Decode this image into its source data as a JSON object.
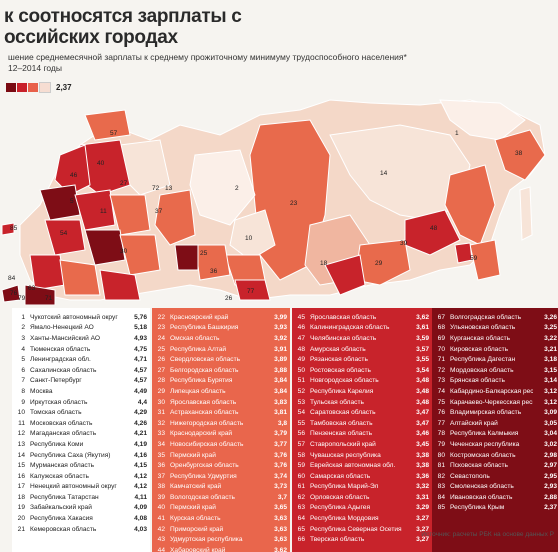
{
  "title_line1": "к соотносятся зарплаты с",
  "title_line2": "оссийских городах",
  "subtitle": "шение среднемесячной зарплаты к среднему прожиточному минимуму трудоспособного населения*\n12–2014 годы",
  "legend_colors": [
    "#7a0a12",
    "#c8202a",
    "#e8604a",
    "#f6ddd2"
  ],
  "legend_value": "2,37",
  "map_labels": [
    {
      "t": "1"
    },
    {
      "t": "38"
    },
    {
      "t": "14"
    },
    {
      "t": "23"
    },
    {
      "t": "2"
    },
    {
      "t": "10"
    },
    {
      "t": "13"
    },
    {
      "t": "57"
    },
    {
      "t": "72"
    },
    {
      "t": "40"
    },
    {
      "t": "46"
    },
    {
      "t": "11"
    },
    {
      "t": "27"
    },
    {
      "t": "37"
    },
    {
      "t": "54"
    },
    {
      "t": "48"
    },
    {
      "t": "39"
    },
    {
      "t": "29"
    },
    {
      "t": "18"
    },
    {
      "t": "59"
    },
    {
      "t": "77"
    },
    {
      "t": "26"
    },
    {
      "t": "36"
    },
    {
      "t": "25"
    },
    {
      "t": "85"
    },
    {
      "t": "63"
    },
    {
      "t": "76"
    },
    {
      "t": "79"
    },
    {
      "t": "84"
    },
    {
      "t": "71"
    },
    {
      "t": "30"
    },
    {
      "t": "5"
    }
  ],
  "columns": [
    {
      "color": "#ffffff",
      "rows": [
        {
          "n": "1",
          "name": "Чукотский автономный округ",
          "v": "5,76"
        },
        {
          "n": "2",
          "name": "Ямало-Ненецкий АО",
          "v": "5,18"
        },
        {
          "n": "3",
          "name": "Ханты-Мансийский АО",
          "v": "4,93"
        },
        {
          "n": "4",
          "name": "Тюменская область",
          "v": "4,75"
        },
        {
          "n": "5",
          "name": "Ленинградская обл.",
          "v": "4,71"
        },
        {
          "n": "6",
          "name": "Сахалинская область",
          "v": "4,57"
        },
        {
          "n": "7",
          "name": "Санкт-Петербург",
          "v": "4,57"
        },
        {
          "n": "8",
          "name": "Москва",
          "v": "4,49"
        },
        {
          "n": "9",
          "name": "Иркутская область",
          "v": "4,4"
        },
        {
          "n": "10",
          "name": "Томская область",
          "v": "4,29"
        },
        {
          "n": "11",
          "name": "Московская область",
          "v": "4,26"
        },
        {
          "n": "12",
          "name": "Магаданская область",
          "v": "4,21"
        },
        {
          "n": "13",
          "name": "Республика Коми",
          "v": "4,19"
        },
        {
          "n": "14",
          "name": "Республика Саха (Якутия)",
          "v": "4,16"
        },
        {
          "n": "15",
          "name": "Мурманская область",
          "v": "4,15"
        },
        {
          "n": "16",
          "name": "Калужская область",
          "v": "4,12"
        },
        {
          "n": "17",
          "name": "Ненецкий автономный округ",
          "v": "4,12"
        },
        {
          "n": "18",
          "name": "Республика Татарстан",
          "v": "4,11"
        },
        {
          "n": "19",
          "name": "Забайкальский край",
          "v": "4,09"
        },
        {
          "n": "20",
          "name": "Республика Хакасия",
          "v": "4,08"
        },
        {
          "n": "21",
          "name": "Кемеровская область",
          "v": "4,03"
        }
      ]
    },
    {
      "color": "#e9664c",
      "rows": [
        {
          "n": "22",
          "name": "Красноярский край",
          "v": "3,99"
        },
        {
          "n": "23",
          "name": "Республика Башкирия",
          "v": "3,93"
        },
        {
          "n": "24",
          "name": "Омская область",
          "v": "3,92"
        },
        {
          "n": "25",
          "name": "Республика Алтай",
          "v": "3,91"
        },
        {
          "n": "26",
          "name": "Свердловская область",
          "v": "3,89"
        },
        {
          "n": "27",
          "name": "Белгородская область",
          "v": "3,88"
        },
        {
          "n": "28",
          "name": "Республика Бурятия",
          "v": "3,84"
        },
        {
          "n": "29",
          "name": "Липецкая область",
          "v": "3,84"
        },
        {
          "n": "30",
          "name": "Ярославская область",
          "v": "3,83"
        },
        {
          "n": "31",
          "name": "Астраханская область",
          "v": "3,81"
        },
        {
          "n": "32",
          "name": "Нижегородская область",
          "v": "3,8"
        },
        {
          "n": "33",
          "name": "Краснодарский край",
          "v": "3,79"
        },
        {
          "n": "34",
          "name": "Новосибирская область",
          "v": "3,77"
        },
        {
          "n": "35",
          "name": "Пермский край",
          "v": "3,76"
        },
        {
          "n": "36",
          "name": "Оренбургская область",
          "v": "3,76"
        },
        {
          "n": "37",
          "name": "Республика Удмуртия",
          "v": "3,74"
        },
        {
          "n": "38",
          "name": "Камчатский край",
          "v": "3,73"
        },
        {
          "n": "39",
          "name": "Вологодская область",
          "v": "3,7"
        },
        {
          "n": "40",
          "name": "Пермский край",
          "v": "3,65"
        },
        {
          "n": "41",
          "name": "Курская область",
          "v": "3,63"
        },
        {
          "n": "42",
          "name": "Приморский край",
          "v": "3,63"
        },
        {
          "n": "43",
          "name": "Удмуртская республика",
          "v": "3,63"
        },
        {
          "n": "44",
          "name": "Хабаровский край",
          "v": "3,62"
        }
      ]
    },
    {
      "color": "#c8232b",
      "rows": [
        {
          "n": "45",
          "name": "Ярославская область",
          "v": "3,62"
        },
        {
          "n": "46",
          "name": "Калининградская область",
          "v": "3,61"
        },
        {
          "n": "47",
          "name": "Челябинская область",
          "v": "3,59"
        },
        {
          "n": "48",
          "name": "Амурская область",
          "v": "3,57"
        },
        {
          "n": "49",
          "name": "Рязанская область",
          "v": "3,55"
        },
        {
          "n": "50",
          "name": "Ростовская область",
          "v": "3,54"
        },
        {
          "n": "51",
          "name": "Новгородская область",
          "v": "3,48"
        },
        {
          "n": "52",
          "name": "Республика Карелия",
          "v": "3,48"
        },
        {
          "n": "53",
          "name": "Тульская область",
          "v": "3,48"
        },
        {
          "n": "54",
          "name": "Саратовская область",
          "v": "3,47"
        },
        {
          "n": "55",
          "name": "Тамбовская область",
          "v": "3,47"
        },
        {
          "n": "56",
          "name": "Пензенская область",
          "v": "3,46"
        },
        {
          "n": "57",
          "name": "Ставропольский край",
          "v": "3,45"
        },
        {
          "n": "58",
          "name": "Чувашская республика",
          "v": "3,38"
        },
        {
          "n": "59",
          "name": "Еврейская автономная обл.",
          "v": "3,38"
        },
        {
          "n": "60",
          "name": "Самарская область",
          "v": "3,36"
        },
        {
          "n": "61",
          "name": "Республика Марий-Эл",
          "v": "3,32"
        },
        {
          "n": "62",
          "name": "Орловская область",
          "v": "3,31"
        },
        {
          "n": "63",
          "name": "Республика Адыгея",
          "v": "3,29"
        },
        {
          "n": "64",
          "name": "Республика Мордовия",
          "v": "3,27"
        },
        {
          "n": "65",
          "name": "Республика Северная Осетия",
          "v": "3,27"
        },
        {
          "n": "66",
          "name": "Тверская область",
          "v": "3,27"
        }
      ]
    },
    {
      "color": "#7e0d16",
      "rows": [
        {
          "n": "67",
          "name": "Волгоградская область",
          "v": "3,26"
        },
        {
          "n": "68",
          "name": "Ульяновская область",
          "v": "3,25"
        },
        {
          "n": "69",
          "name": "Курганская область",
          "v": "3,22"
        },
        {
          "n": "70",
          "name": "Кировская область",
          "v": "3,21"
        },
        {
          "n": "71",
          "name": "Республика Дагестан",
          "v": "3,18"
        },
        {
          "n": "72",
          "name": "Мордовская область",
          "v": "3,15"
        },
        {
          "n": "73",
          "name": "Брянская область",
          "v": "3,14"
        },
        {
          "n": "74",
          "name": "Кабардино-Балкарская респ.",
          "v": "3,12"
        },
        {
          "n": "75",
          "name": "Карачаево-Черкесская респ.",
          "v": "3,12"
        },
        {
          "n": "76",
          "name": "Владимирская область",
          "v": "3,09"
        },
        {
          "n": "77",
          "name": "Алтайский край",
          "v": "3,05"
        },
        {
          "n": "78",
          "name": "Республика Калмыкия",
          "v": "3,04"
        },
        {
          "n": "79",
          "name": "Чеченская республика",
          "v": "3,02"
        },
        {
          "n": "80",
          "name": "Костромская область",
          "v": "2,98"
        },
        {
          "n": "81",
          "name": "Псковская область",
          "v": "2,97"
        },
        {
          "n": "82",
          "name": "Севастополь",
          "v": "2,95"
        },
        {
          "n": "83",
          "name": "Смоленская область",
          "v": "2,93"
        },
        {
          "n": "84",
          "name": "Ивановская область",
          "v": "2,88"
        },
        {
          "n": "85",
          "name": "Республика Крым",
          "v": "2,37"
        }
      ]
    }
  ],
  "source_text": "Источник: расчеты РБК на основе данных Р"
}
